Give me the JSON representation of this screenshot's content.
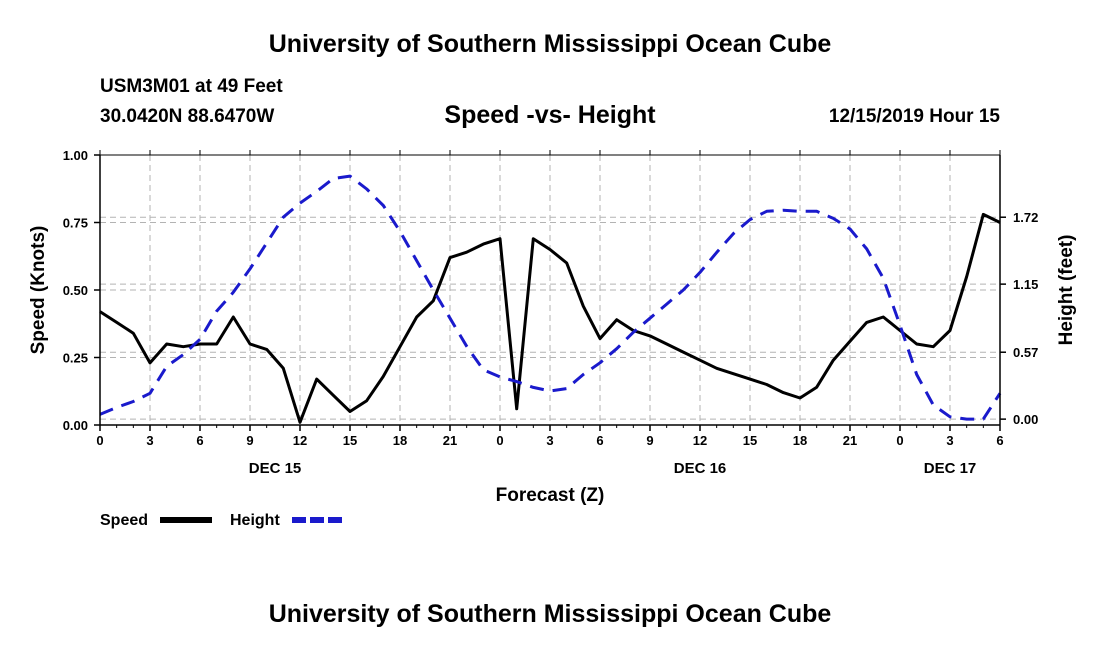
{
  "page": {
    "title_top": "University of Southern Mississippi Ocean Cube",
    "title_bottom": "University of Southern Mississippi Ocean Cube",
    "station": "USM3M01 at 49 Feet",
    "coords": "30.0420N 88.6470W",
    "subtitle": "Speed -vs- Height",
    "datetime": "12/15/2019 Hour 15"
  },
  "colors": {
    "speed": "#000000",
    "height": "#1a1acc",
    "grid": "#b3b3b3"
  },
  "chart_data": {
    "type": "line",
    "title": "Speed -vs- Height",
    "xlabel": "Forecast (Z)",
    "ylabel": "Speed (Knots)",
    "ylabel_right": "Height (feet)",
    "xlim": [
      0,
      54
    ],
    "ylim": [
      0,
      1
    ],
    "ylim_right": [
      -0.05,
      2.25
    ],
    "x_ticks": [
      0,
      3,
      6,
      9,
      12,
      15,
      18,
      21,
      24,
      27,
      30,
      33,
      36,
      39,
      42,
      45,
      48,
      51,
      54
    ],
    "x_tick_labels": [
      "0",
      "3",
      "6",
      "9",
      "12",
      "15",
      "18",
      "21",
      "0",
      "3",
      "6",
      "9",
      "12",
      "15",
      "18",
      "21",
      "0",
      "3",
      "6"
    ],
    "day_labels": [
      {
        "x": 10.5,
        "label": "DEC 15"
      },
      {
        "x": 36.0,
        "label": "DEC 16"
      },
      {
        "x": 51.0,
        "label": "DEC 17"
      }
    ],
    "y_ticks": [
      0.0,
      0.25,
      0.5,
      0.75,
      1.0
    ],
    "y_tick_labels": [
      "0.00",
      "0.25",
      "0.50",
      "0.75",
      "1.00"
    ],
    "y_right_ticks": [
      0.0,
      0.57,
      1.15,
      1.72
    ],
    "y_right_tick_labels": [
      "0.00",
      "0.57",
      "1.15",
      "1.72"
    ],
    "grid": true,
    "legend": {
      "position": "bottom-left",
      "entries": [
        "Speed",
        "Height"
      ]
    },
    "series": [
      {
        "name": "Speed",
        "axis": "left",
        "style": "solid",
        "x": [
          0,
          1,
          2,
          3,
          4,
          5,
          6,
          7,
          8,
          9,
          10,
          11,
          12,
          13,
          14,
          15,
          16,
          17,
          18,
          19,
          20,
          21,
          22,
          23,
          24,
          25,
          26,
          27,
          28,
          29,
          30,
          31,
          32,
          33,
          34,
          35,
          36,
          37,
          38,
          39,
          40,
          41,
          42,
          43,
          44,
          45,
          46,
          47,
          48,
          49,
          50,
          51,
          52,
          53,
          54
        ],
        "values": [
          0.42,
          0.38,
          0.34,
          0.23,
          0.3,
          0.29,
          0.3,
          0.3,
          0.4,
          0.3,
          0.28,
          0.21,
          0.01,
          0.17,
          0.11,
          0.05,
          0.09,
          0.18,
          0.29,
          0.4,
          0.46,
          0.62,
          0.64,
          0.67,
          0.69,
          0.06,
          0.69,
          0.65,
          0.6,
          0.44,
          0.32,
          0.39,
          0.35,
          0.33,
          0.3,
          0.27,
          0.24,
          0.21,
          0.19,
          0.17,
          0.15,
          0.12,
          0.1,
          0.14,
          0.24,
          0.31,
          0.38,
          0.4,
          0.35,
          0.3,
          0.29,
          0.35,
          0.55,
          0.78,
          0.75
        ]
      },
      {
        "name": "Height",
        "axis": "right",
        "style": "dashed",
        "x": [
          0,
          1,
          2,
          3,
          4,
          5,
          6,
          7,
          8,
          9,
          10,
          11,
          12,
          13,
          14,
          15,
          16,
          17,
          18,
          19,
          20,
          21,
          22,
          23,
          24,
          25,
          26,
          27,
          28,
          29,
          30,
          31,
          32,
          33,
          34,
          35,
          36,
          37,
          38,
          39,
          40,
          41,
          42,
          43,
          44,
          45,
          46,
          47,
          48,
          49,
          50,
          51,
          52,
          53,
          54
        ],
        "values": [
          0.04,
          0.1,
          0.15,
          0.22,
          0.45,
          0.55,
          0.68,
          0.92,
          1.08,
          1.28,
          1.5,
          1.72,
          1.84,
          1.94,
          2.05,
          2.07,
          1.96,
          1.82,
          1.6,
          1.35,
          1.1,
          0.86,
          0.62,
          0.42,
          0.36,
          0.32,
          0.27,
          0.24,
          0.26,
          0.38,
          0.48,
          0.6,
          0.74,
          0.86,
          0.98,
          1.1,
          1.25,
          1.42,
          1.58,
          1.7,
          1.77,
          1.78,
          1.77,
          1.77,
          1.71,
          1.62,
          1.45,
          1.2,
          0.8,
          0.38,
          0.12,
          0.02,
          0.0,
          0.0,
          0.22
        ]
      }
    ]
  }
}
